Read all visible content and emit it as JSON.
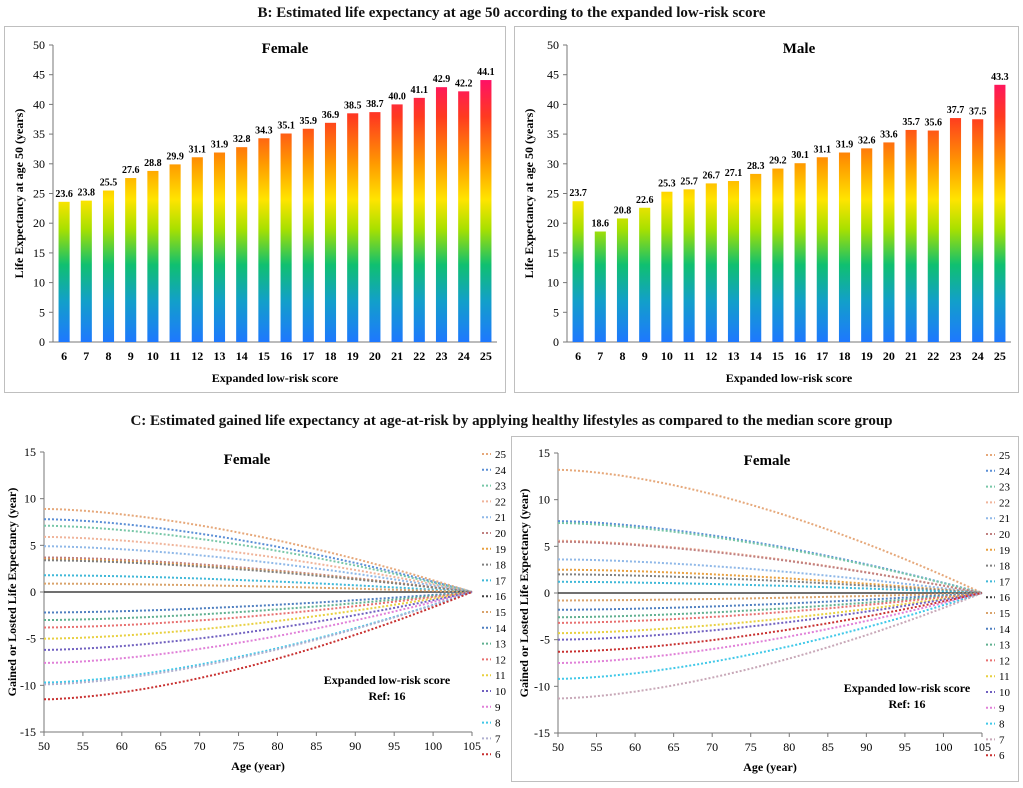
{
  "figure": {
    "title_b": "B: Estimated life expectancy at age 50 according to the expanded low-risk score",
    "title_c": "C: Estimated gained life expectancy at age-at-risk by applying healthy lifestyles as compared to the median score group"
  },
  "chart_data": [
    {
      "type": "bar",
      "title": "Female",
      "xlabel": "Expanded low-risk score",
      "ylabel": "Life Expectancy at age 50 (years)",
      "ylim": [
        0,
        50
      ],
      "yticks": [
        "0",
        "5",
        "10",
        "15",
        "20",
        "25",
        "30",
        "35",
        "40",
        "45",
        "50"
      ],
      "categories": [
        "6",
        "7",
        "8",
        "9",
        "10",
        "11",
        "12",
        "13",
        "14",
        "15",
        "16",
        "17",
        "18",
        "19",
        "20",
        "21",
        "22",
        "23",
        "24",
        "25"
      ],
      "values": [
        23.6,
        23.8,
        25.5,
        27.6,
        28.8,
        29.9,
        31.1,
        31.9,
        32.8,
        34.3,
        35.1,
        35.9,
        36.9,
        38.5,
        38.7,
        40.0,
        41.1,
        42.9,
        42.2,
        44.1
      ],
      "labels": [
        "23.6",
        "23.8",
        "25.5",
        "27.6",
        "28.8",
        "29.9",
        "31.1",
        "31.9",
        "32.8",
        "34.3",
        "35.1",
        "35.9",
        "36.9",
        "38.5",
        "38.7",
        "40.0",
        "41.1",
        "42.9",
        "42.2",
        "44.1"
      ],
      "fill": "gradient blue-green-yellow-orange-red-magenta"
    },
    {
      "type": "bar",
      "title": "Male",
      "xlabel": "Expanded low-risk score",
      "ylabel": "Life Expectancy at age 50 (years)",
      "ylim": [
        0,
        50
      ],
      "yticks": [
        "0",
        "5",
        "10",
        "15",
        "20",
        "25",
        "30",
        "35",
        "40",
        "45",
        "50"
      ],
      "categories": [
        "6",
        "7",
        "8",
        "9",
        "10",
        "11",
        "12",
        "13",
        "14",
        "15",
        "16",
        "17",
        "18",
        "19",
        "20",
        "21",
        "22",
        "23",
        "24",
        "25"
      ],
      "values": [
        23.7,
        18.6,
        20.8,
        22.6,
        25.3,
        25.7,
        26.7,
        27.1,
        28.3,
        29.2,
        30.1,
        31.1,
        31.9,
        32.6,
        33.6,
        35.7,
        35.6,
        37.7,
        37.5,
        43.3
      ],
      "labels": [
        "23.7",
        "18.6",
        "20.8",
        "22.6",
        "25.3",
        "25.7",
        "26.7",
        "27.1",
        "28.3",
        "29.2",
        "30.1",
        "31.1",
        "31.9",
        "32.6",
        "33.6",
        "35.7",
        "35.6",
        "37.7",
        "37.5",
        "43.3"
      ],
      "fill": "gradient blue-green-yellow-orange-red-magenta"
    },
    {
      "type": "line",
      "title": "Female",
      "xlabel": "Age (year)",
      "ylabel": "Gained or Losted Life Expectancy (year)",
      "xlim": [
        50,
        105
      ],
      "ylim": [
        -15,
        15
      ],
      "xticks": [
        "50",
        "55",
        "60",
        "65",
        "70",
        "75",
        "80",
        "85",
        "90",
        "95",
        "100",
        "105"
      ],
      "yticks": [
        "-15",
        "-10",
        "-5",
        "0",
        "5",
        "10",
        "15"
      ],
      "annotation": [
        "Expanded low-risk score",
        "Ref: 16"
      ],
      "legend_labels": [
        "25",
        "24",
        "23",
        "22",
        "21",
        "20",
        "19",
        "18",
        "17",
        "16",
        "15",
        "14",
        "13",
        "12",
        "11",
        "10",
        "9",
        "8",
        "7",
        "6"
      ],
      "series": [
        {
          "name": "25",
          "color": "#e6a87a",
          "y50": 8.9
        },
        {
          "name": "24",
          "color": "#5b8fd6",
          "y50": 7.8
        },
        {
          "name": "23",
          "color": "#78c7a8",
          "y50": 7.1
        },
        {
          "name": "22",
          "color": "#f0b49a",
          "y50": 5.9
        },
        {
          "name": "21",
          "color": "#8fb8e8",
          "y50": 4.9
        },
        {
          "name": "20",
          "color": "#c08080",
          "y50": 3.7
        },
        {
          "name": "19",
          "color": "#e8a040",
          "y50": 3.5
        },
        {
          "name": "18",
          "color": "#808080",
          "y50": 3.4
        },
        {
          "name": "17",
          "color": "#3fb8d8",
          "y50": 1.8
        },
        {
          "name": "16",
          "color": "#404040",
          "y50": 0.0
        },
        {
          "name": "15",
          "color": "#d9a36b",
          "y50": 0.9
        },
        {
          "name": "14",
          "color": "#4f7fc0",
          "y50": -2.2
        },
        {
          "name": "13",
          "color": "#60b090",
          "y50": -3.0
        },
        {
          "name": "12",
          "color": "#e87070",
          "y50": -3.8
        },
        {
          "name": "11",
          "color": "#e8d040",
          "y50": -5.0
        },
        {
          "name": "10",
          "color": "#7060c0",
          "y50": -6.2
        },
        {
          "name": "9",
          "color": "#e080d8",
          "y50": -7.6
        },
        {
          "name": "8",
          "color": "#40c8e8",
          "y50": -9.7
        },
        {
          "name": "7",
          "color": "#b0b0d0",
          "y50": -9.9
        },
        {
          "name": "6",
          "color": "#c83030",
          "y50": -11.5
        }
      ]
    },
    {
      "type": "line",
      "title": "Female",
      "xlabel": "Age (year)",
      "ylabel": "Gained or Losted Life Expectancy (year)",
      "xlim": [
        50,
        105
      ],
      "ylim": [
        -15,
        15
      ],
      "xticks": [
        "50",
        "55",
        "60",
        "65",
        "70",
        "75",
        "80",
        "85",
        "90",
        "95",
        "100",
        "105"
      ],
      "yticks": [
        "-15",
        "-10",
        "-5",
        "0",
        "5",
        "10",
        "15"
      ],
      "annotation": [
        "Expanded low-risk score",
        "Ref: 16"
      ],
      "legend_labels": [
        "25",
        "24",
        "23",
        "22",
        "21",
        "20",
        "19",
        "18",
        "17",
        "16",
        "15",
        "14",
        "13",
        "12",
        "11",
        "10",
        "9",
        "8",
        "7",
        "6"
      ],
      "series": [
        {
          "name": "25",
          "color": "#e6a87a",
          "y50": 13.2
        },
        {
          "name": "24",
          "color": "#5b8fd6",
          "y50": 7.7
        },
        {
          "name": "23",
          "color": "#78c7a8",
          "y50": 7.5
        },
        {
          "name": "22",
          "color": "#f0b49a",
          "y50": 5.6
        },
        {
          "name": "21",
          "color": "#8fb8e8",
          "y50": 3.6
        },
        {
          "name": "20",
          "color": "#c08080",
          "y50": 5.5
        },
        {
          "name": "19",
          "color": "#e8a040",
          "y50": 2.5
        },
        {
          "name": "18",
          "color": "#808080",
          "y50": 2.0
        },
        {
          "name": "17",
          "color": "#3fb8d8",
          "y50": 1.2
        },
        {
          "name": "16",
          "color": "#404040",
          "y50": 0.0
        },
        {
          "name": "15",
          "color": "#d9a36b",
          "y50": -0.8
        },
        {
          "name": "14",
          "color": "#4f7fc0",
          "y50": -1.8
        },
        {
          "name": "13",
          "color": "#60b090",
          "y50": -2.6
        },
        {
          "name": "12",
          "color": "#e87070",
          "y50": -3.2
        },
        {
          "name": "11",
          "color": "#e8d040",
          "y50": -4.3
        },
        {
          "name": "10",
          "color": "#7060c0",
          "y50": -5.0
        },
        {
          "name": "9",
          "color": "#e080d8",
          "y50": -7.5
        },
        {
          "name": "8",
          "color": "#40c8e8",
          "y50": -9.2
        },
        {
          "name": "7",
          "color": "#c8a8b8",
          "y50": -11.3
        },
        {
          "name": "6",
          "color": "#c83030",
          "y50": -6.3
        }
      ]
    }
  ]
}
